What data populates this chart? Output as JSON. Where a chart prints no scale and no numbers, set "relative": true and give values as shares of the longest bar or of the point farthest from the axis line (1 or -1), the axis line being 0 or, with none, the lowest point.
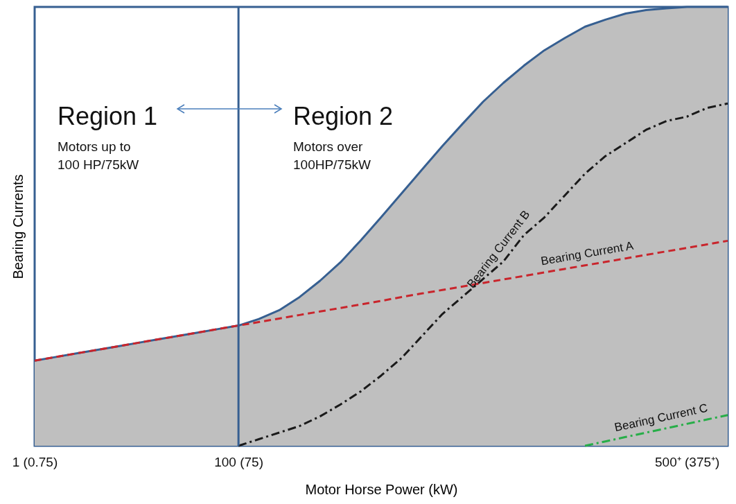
{
  "chart_data": {
    "type": "area",
    "relative": true,
    "xlabel": "Motor Horse Power  (kW)",
    "ylabel": "Bearing Currents",
    "categories": [
      "1 (0.75)",
      null,
      null,
      null,
      null,
      null,
      null,
      null,
      null,
      null,
      "100 (75)",
      null,
      null,
      null,
      null,
      null,
      null,
      null,
      null,
      null,
      null,
      null,
      null,
      null,
      null,
      null,
      null,
      null,
      null,
      null,
      null,
      null,
      "500⁺ (375⁺)",
      null,
      null
    ],
    "annotations": [
      "Region 1",
      "Motors up to 100 HP/75kW",
      "Region 2",
      "Motors over 100HP/75kW"
    ],
    "ref_lines": [
      {
        "axis": "x",
        "value": "100 (75)",
        "color": "#365f91"
      }
    ],
    "marker": "none",
    "grid": false,
    "series": [
      {
        "color": "#bfbfbf",
        "values": [
          0.194,
          0.202,
          0.21,
          0.218,
          0.226,
          0.234,
          0.242,
          0.25,
          0.258,
          0.266,
          0.274,
          0.289,
          0.309,
          0.339,
          0.376,
          0.418,
          0.468,
          0.521,
          0.575,
          0.629,
          0.683,
          0.734,
          0.784,
          0.827,
          0.866,
          0.901,
          0.929,
          0.955,
          0.971,
          0.985,
          0.993,
          0.997,
          1,
          1,
          1
        ]
      },
      {
        "name": "Bearing Current A",
        "type": "line",
        "color": "#c9252c",
        "line_style": "dashed",
        "values": [
          0.194,
          0.202,
          0.21,
          0.218,
          0.226,
          0.234,
          0.242,
          0.25,
          0.258,
          0.266,
          0.274,
          0.282,
          0.29,
          0.298,
          0.306,
          0.314,
          0.322,
          0.33,
          0.339,
          0.347,
          0.355,
          0.363,
          0.371,
          0.379,
          0.387,
          0.395,
          0.403,
          0.411,
          0.419,
          0.427,
          0.435,
          0.443,
          0.451,
          0.459,
          0.467
        ]
      },
      {
        "name": "Bearing Current B",
        "type": "line",
        "color": "#1a1a1a",
        "line_style": "dashdot",
        "values": [
          null,
          null,
          null,
          null,
          null,
          null,
          null,
          null,
          null,
          null,
          0,
          0.015,
          0.03,
          0.045,
          0.067,
          0.094,
          0.124,
          0.16,
          0.2,
          0.25,
          0.3,
          0.34,
          0.38,
          0.42,
          0.48,
          0.52,
          0.57,
          0.62,
          0.66,
          0.69,
          0.72,
          0.74,
          0.75,
          0.77,
          0.78
        ]
      },
      {
        "name": "Bearing Current  C",
        "type": "line",
        "color": "#27ae48",
        "line_style": "dashdot",
        "values": [
          null,
          null,
          null,
          null,
          null,
          null,
          null,
          null,
          null,
          null,
          null,
          null,
          null,
          null,
          null,
          null,
          null,
          null,
          null,
          null,
          null,
          null,
          null,
          null,
          null,
          null,
          null,
          0,
          0.01,
          0.02,
          0.03,
          0.04,
          0.05,
          0.06,
          0.07
        ]
      }
    ]
  }
}
